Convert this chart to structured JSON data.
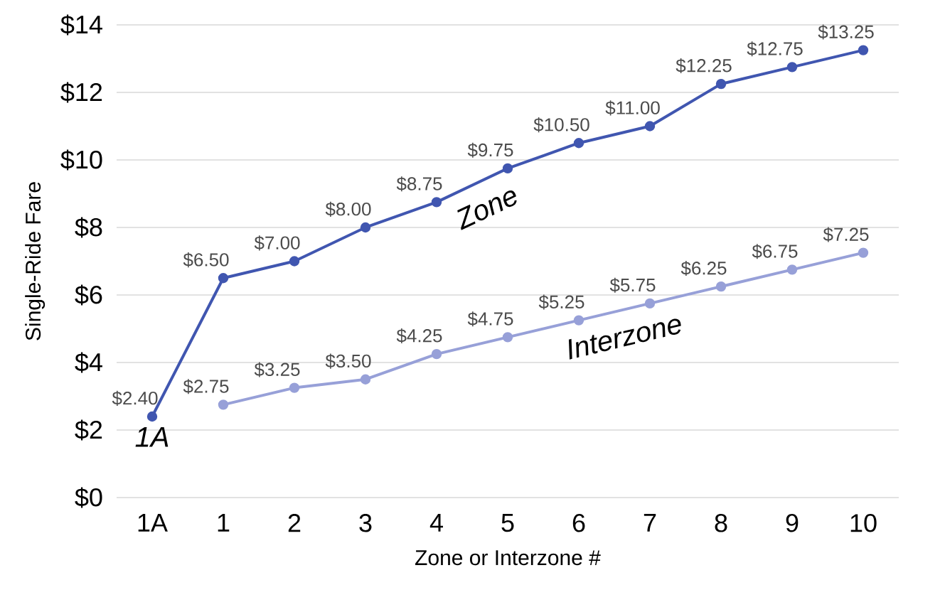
{
  "chart_data": {
    "type": "line",
    "xlabel": "Zone or Interzone #",
    "ylabel": "Single-Ride Fare",
    "categories": [
      "1A",
      "1",
      "2",
      "3",
      "4",
      "5",
      "6",
      "7",
      "8",
      "9",
      "10"
    ],
    "series": [
      {
        "name": "Zone",
        "color": "#4056b0",
        "values": [
          2.4,
          6.5,
          7.0,
          8.0,
          8.75,
          9.75,
          10.5,
          11.0,
          12.25,
          12.75,
          13.25
        ],
        "value_labels": [
          "$2.40",
          "$6.50",
          "$7.00",
          "$8.00",
          "$8.75",
          "$9.75",
          "$10.50",
          "$11.00",
          "$12.25",
          "$12.75",
          "$13.25"
        ]
      },
      {
        "name": "Interzone",
        "color": "#97a0d8",
        "values": [
          null,
          2.75,
          3.25,
          3.5,
          4.25,
          4.75,
          5.25,
          5.75,
          6.25,
          6.75,
          7.25
        ],
        "value_labels": [
          null,
          "$2.75",
          "$3.25",
          "$3.50",
          "$4.25",
          "$4.75",
          "$5.25",
          "$5.75",
          "$6.25",
          "$6.75",
          "$7.25"
        ]
      }
    ],
    "annotations": [
      {
        "text": "1A",
        "x": "1A",
        "y": 2.4
      }
    ],
    "ylim": [
      0,
      14
    ],
    "yticks": [
      {
        "value": 0,
        "label": "$0"
      },
      {
        "value": 2,
        "label": "$2"
      },
      {
        "value": 4,
        "label": "$4"
      },
      {
        "value": 6,
        "label": "$6"
      },
      {
        "value": 8,
        "label": "$8"
      },
      {
        "value": 10,
        "label": "$10"
      },
      {
        "value": 12,
        "label": "$12"
      },
      {
        "value": 14,
        "label": "$14"
      }
    ],
    "grid": "y",
    "legend": false,
    "marker": "circle",
    "line_style": "solid"
  }
}
